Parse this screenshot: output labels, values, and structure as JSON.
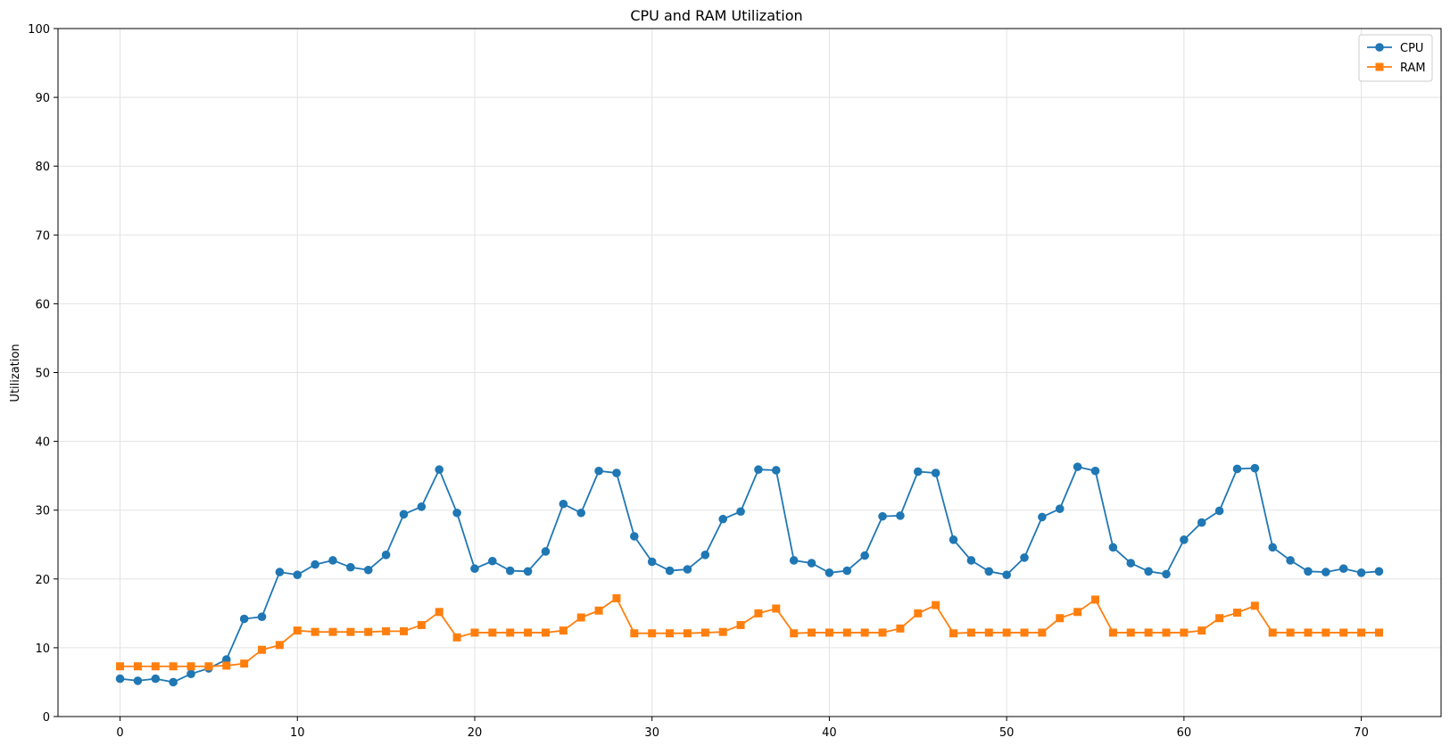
{
  "chart_data": {
    "type": "line",
    "title": "CPU and RAM Utilization",
    "xlabel": "",
    "ylabel": "Utilization",
    "xlim": [
      -3.5,
      74.5
    ],
    "ylim": [
      0,
      100
    ],
    "xticks": [
      0,
      10,
      20,
      30,
      40,
      50,
      60,
      70
    ],
    "yticks": [
      0,
      10,
      20,
      30,
      40,
      50,
      60,
      70,
      80,
      90,
      100
    ],
    "grid": true,
    "legend_position": "top-right",
    "x": [
      0,
      1,
      2,
      3,
      4,
      5,
      6,
      7,
      8,
      9,
      10,
      11,
      12,
      13,
      14,
      15,
      16,
      17,
      18,
      19,
      20,
      21,
      22,
      23,
      24,
      25,
      26,
      27,
      28,
      29,
      30,
      31,
      32,
      33,
      34,
      35,
      36,
      37,
      38,
      39,
      40,
      41,
      42,
      43,
      44,
      45,
      46,
      47,
      48,
      49,
      50,
      51,
      52,
      53,
      54,
      55,
      56,
      57,
      58,
      59,
      60,
      61,
      62,
      63,
      64,
      65,
      66,
      67,
      68,
      69,
      70,
      71
    ],
    "series": [
      {
        "name": "CPU",
        "color": "#1f77b4",
        "marker": "circle",
        "values": [
          5.5,
          5.2,
          5.5,
          5.0,
          6.2,
          7.0,
          8.3,
          14.2,
          14.5,
          21.0,
          20.6,
          22.1,
          22.7,
          21.7,
          21.3,
          23.5,
          29.4,
          30.5,
          35.9,
          29.6,
          21.5,
          22.6,
          21.2,
          21.1,
          24.0,
          30.9,
          29.6,
          35.7,
          35.4,
          26.2,
          22.5,
          21.2,
          21.4,
          23.5,
          28.7,
          29.8,
          35.9,
          35.8,
          22.7,
          22.3,
          20.9,
          21.2,
          23.4,
          29.1,
          29.2,
          35.6,
          35.4,
          25.7,
          22.7,
          21.1,
          20.6,
          23.1,
          29.0,
          30.2,
          36.3,
          35.7,
          24.6,
          22.3,
          21.1,
          20.7,
          25.7,
          28.2,
          29.9,
          36.0,
          36.1,
          24.6,
          22.7,
          21.1,
          21.0,
          21.5,
          20.9,
          21.1
        ]
      },
      {
        "name": "RAM",
        "color": "#ff7f0e",
        "marker": "square",
        "values": [
          7.3,
          7.3,
          7.3,
          7.3,
          7.3,
          7.3,
          7.4,
          7.7,
          9.7,
          10.4,
          12.5,
          12.3,
          12.3,
          12.3,
          12.3,
          12.4,
          12.4,
          13.3,
          15.2,
          11.5,
          12.2,
          12.2,
          12.2,
          12.2,
          12.2,
          12.5,
          14.4,
          15.4,
          17.2,
          12.1,
          12.1,
          12.1,
          12.1,
          12.2,
          12.3,
          13.3,
          15.0,
          15.7,
          12.1,
          12.2,
          12.2,
          12.2,
          12.2,
          12.2,
          12.8,
          15.0,
          16.2,
          12.1,
          12.2,
          12.2,
          12.2,
          12.2,
          12.2,
          14.3,
          15.2,
          17.0,
          12.2,
          12.2,
          12.2,
          12.2,
          12.2,
          12.5,
          14.3,
          15.1,
          16.1,
          12.2,
          12.2,
          12.2,
          12.2,
          12.2,
          12.2,
          12.2
        ]
      }
    ]
  }
}
